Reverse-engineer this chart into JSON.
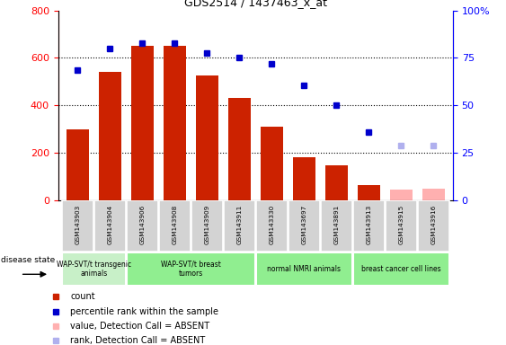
{
  "title": "GDS2514 / 1437463_x_at",
  "samples": [
    "GSM143903",
    "GSM143904",
    "GSM143906",
    "GSM143908",
    "GSM143909",
    "GSM143911",
    "GSM143330",
    "GSM143697",
    "GSM143891",
    "GSM143913",
    "GSM143915",
    "GSM143916"
  ],
  "counts": [
    300,
    540,
    650,
    650,
    525,
    430,
    310,
    180,
    145,
    65,
    null,
    null
  ],
  "counts_absent": [
    null,
    null,
    null,
    null,
    null,
    null,
    null,
    null,
    null,
    null,
    45,
    50
  ],
  "ranks_pct": [
    68.75,
    80,
    82.5,
    82.5,
    77.5,
    75,
    71.875,
    60.625,
    50,
    35.625,
    null,
    null
  ],
  "ranks_absent_pct": [
    null,
    null,
    null,
    null,
    null,
    null,
    null,
    null,
    null,
    null,
    28.75,
    28.75
  ],
  "group_colors": [
    "#c8f0c8",
    "#90ee90",
    "#90ee90",
    "#90ee90"
  ],
  "group_labels": [
    "WAP-SVT/t transgenic\nanimals",
    "WAP-SVT/t breast\ntumors",
    "normal NMRI animals",
    "breast cancer cell lines"
  ],
  "group_ranges": [
    [
      0,
      2
    ],
    [
      2,
      6
    ],
    [
      6,
      9
    ],
    [
      9,
      12
    ]
  ],
  "ylim_left": [
    0,
    800
  ],
  "ylim_right": [
    0,
    100
  ],
  "bar_color": "#cc2200",
  "bar_absent_color": "#ffb0b0",
  "rank_color": "#0000cc",
  "rank_absent_color": "#b0b0ee",
  "bg_color": "#ffffff",
  "tick_area_bg": "#d3d3d3",
  "legend_items": [
    {
      "color": "#cc2200",
      "label": "count"
    },
    {
      "color": "#0000cc",
      "label": "percentile rank within the sample"
    },
    {
      "color": "#ffb0b0",
      "label": "value, Detection Call = ABSENT"
    },
    {
      "color": "#b0b0ee",
      "label": "rank, Detection Call = ABSENT"
    }
  ]
}
